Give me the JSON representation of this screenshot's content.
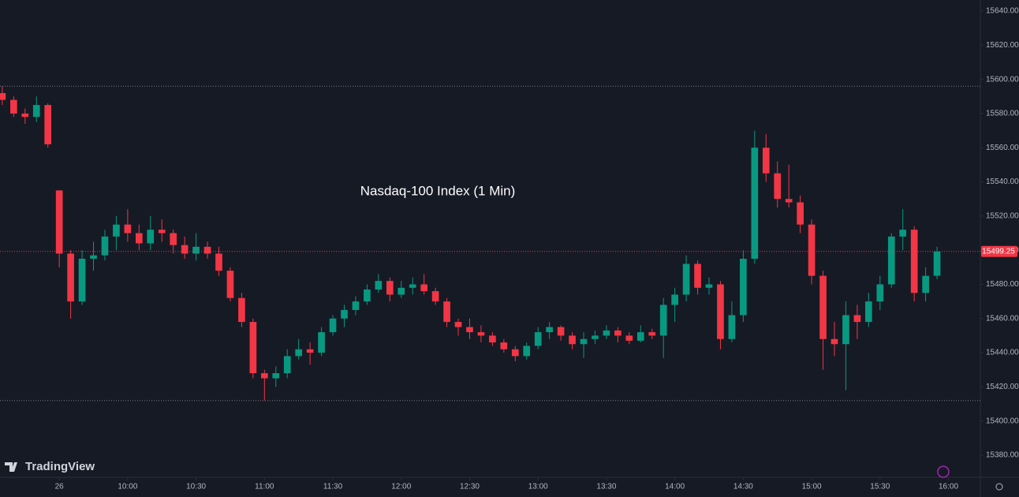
{
  "chart_data": {
    "type": "candlestick",
    "title": "Nasdaq-100 Index (1 Min)",
    "logo": "TradingView",
    "up_color": "#089981",
    "down_color": "#f23645",
    "x": [
      -25,
      -20,
      -15,
      -10,
      -5,
      0,
      5,
      10,
      15,
      20,
      25,
      30,
      35,
      40,
      45,
      50,
      55,
      60,
      65,
      70,
      75,
      80,
      85,
      90,
      95,
      100,
      105,
      110,
      115,
      120,
      125,
      130,
      135,
      140,
      145,
      150,
      155,
      160,
      165,
      170,
      175,
      180,
      185,
      190,
      195,
      200,
      205,
      210,
      215,
      220,
      225,
      230,
      235,
      240,
      245,
      250,
      255,
      260,
      265,
      270,
      275,
      280,
      285,
      290,
      295,
      300,
      305,
      310,
      315,
      320,
      325,
      330,
      335,
      340,
      345,
      350,
      355,
      360,
      365,
      370,
      375,
      380,
      385
    ],
    "open": [
      15592,
      15588,
      15580,
      15578,
      15585,
      15535,
      15498,
      15470,
      15495,
      15497,
      15508,
      15515,
      15510,
      15504,
      15512,
      15510,
      15503,
      15498,
      15502,
      15498,
      15488,
      15472,
      15458,
      15428,
      15425,
      15428,
      15438,
      15442,
      15440,
      15452,
      15460,
      15465,
      15470,
      15477,
      15482,
      15474,
      15478,
      15480,
      15476,
      15470,
      15458,
      15455,
      15452,
      15450,
      15446,
      15442,
      15438,
      15444,
      15452,
      15455,
      15450,
      15445,
      15448,
      15450,
      15453,
      15450,
      15447,
      15452,
      15450,
      15468,
      15474,
      15492,
      15478,
      15480,
      15448,
      15462,
      15495,
      15560,
      15545,
      15530,
      15528,
      15515,
      15485,
      15448,
      15445,
      15462,
      15458,
      15470,
      15480,
      15508,
      15512,
      15475,
      15485
    ],
    "high": [
      15596,
      15590,
      15583,
      15590,
      15586,
      15535,
      15500,
      15500,
      15505,
      15512,
      15520,
      15524,
      15515,
      15520,
      15518,
      15512,
      15508,
      15510,
      15505,
      15502,
      15490,
      15475,
      15460,
      15430,
      15432,
      15442,
      15448,
      15446,
      15455,
      15462,
      15468,
      15473,
      15480,
      15486,
      15484,
      15482,
      15484,
      15486,
      15478,
      15472,
      15460,
      15460,
      15456,
      15452,
      15448,
      15444,
      15446,
      15455,
      15458,
      15456,
      15452,
      15452,
      15453,
      15456,
      15455,
      15452,
      15456,
      15454,
      15472,
      15478,
      15497,
      15494,
      15484,
      15482,
      15470,
      15500,
      15570,
      15568,
      15552,
      15550,
      15532,
      15518,
      15488,
      15458,
      15470,
      15468,
      15475,
      15485,
      15510,
      15524,
      15514,
      15490,
      15502
    ],
    "low": [
      15585,
      15578,
      15574,
      15575,
      15560,
      15490,
      15460,
      15468,
      15488,
      15494,
      15500,
      15505,
      15500,
      15500,
      15505,
      15498,
      15495,
      15494,
      15495,
      15485,
      15470,
      15455,
      15425,
      15412,
      15420,
      15425,
      15436,
      15433,
      15438,
      15450,
      15455,
      15462,
      15468,
      15475,
      15470,
      15472,
      15474,
      15474,
      15468,
      15455,
      15450,
      15448,
      15446,
      15444,
      15440,
      15435,
      15436,
      15442,
      15448,
      15447,
      15442,
      15437,
      15445,
      15448,
      15446,
      15445,
      15446,
      15448,
      15437,
      15458,
      15470,
      15474,
      15474,
      15442,
      15446,
      15458,
      15492,
      15540,
      15525,
      15525,
      15510,
      15480,
      15430,
      15438,
      15418,
      15448,
      15455,
      15465,
      15478,
      15500,
      15470,
      15470,
      15483
    ],
    "close": [
      15588,
      15580,
      15578,
      15585,
      15562,
      15498,
      15470,
      15495,
      15497,
      15508,
      15515,
      15510,
      15504,
      15512,
      15510,
      15503,
      15498,
      15502,
      15498,
      15488,
      15472,
      15458,
      15428,
      15425,
      15428,
      15438,
      15442,
      15440,
      15452,
      15460,
      15465,
      15470,
      15477,
      15482,
      15474,
      15478,
      15480,
      15476,
      15470,
      15458,
      15455,
      15452,
      15450,
      15446,
      15442,
      15438,
      15444,
      15452,
      15455,
      15450,
      15445,
      15448,
      15450,
      15453,
      15450,
      15447,
      15452,
      15450,
      15468,
      15474,
      15492,
      15478,
      15480,
      15448,
      15462,
      15495,
      15560,
      15545,
      15530,
      15528,
      15515,
      15485,
      15448,
      15445,
      15462,
      15458,
      15470,
      15480,
      15508,
      15512,
      15475,
      15485,
      15499.25
    ],
    "high_line": 15596,
    "low_line": 15412,
    "last_price": 15499.25,
    "xlim": [
      -26,
      404
    ],
    "ylim": [
      15374,
      15646
    ],
    "xticks": [
      {
        "value": 0,
        "label": "26"
      },
      {
        "value": 30,
        "label": "10:00"
      },
      {
        "value": 60,
        "label": "10:30"
      },
      {
        "value": 90,
        "label": "11:00"
      },
      {
        "value": 120,
        "label": "11:30"
      },
      {
        "value": 150,
        "label": "12:00"
      },
      {
        "value": 180,
        "label": "12:30"
      },
      {
        "value": 210,
        "label": "13:00"
      },
      {
        "value": 240,
        "label": "13:30"
      },
      {
        "value": 270,
        "label": "14:00"
      },
      {
        "value": 300,
        "label": "14:30"
      },
      {
        "value": 330,
        "label": "15:00"
      },
      {
        "value": 360,
        "label": "15:30"
      },
      {
        "value": 390,
        "label": "16:00"
      }
    ],
    "yticks": [
      {
        "value": 15380,
        "label": "15380.00"
      },
      {
        "value": 15400,
        "label": "15400.00"
      },
      {
        "value": 15420,
        "label": "15420.00"
      },
      {
        "value": 15440,
        "label": "15440.00"
      },
      {
        "value": 15460,
        "label": "15460.00"
      },
      {
        "value": 15480,
        "label": "15480.00"
      },
      {
        "value": 15500,
        "label": "15500.00"
      },
      {
        "value": 15520,
        "label": "15520.00"
      },
      {
        "value": 15540,
        "label": "15540.00"
      },
      {
        "value": 15560,
        "label": "15560.00"
      },
      {
        "value": 15580,
        "label": "15580.00"
      },
      {
        "value": 15600,
        "label": "15600.00"
      },
      {
        "value": 15620,
        "label": "15620.00"
      },
      {
        "value": 15640,
        "label": "15640.00"
      }
    ]
  }
}
